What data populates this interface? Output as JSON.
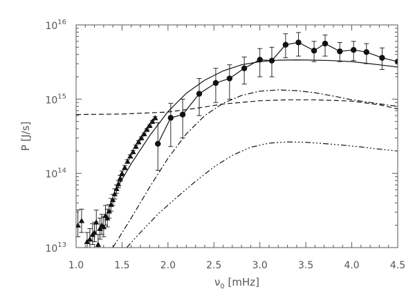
{
  "chart_data": {
    "type": "line",
    "title": "",
    "xlabel_symbol": "ν",
    "xlabel_sub": "0",
    "xlabel_unit": " [mHz]",
    "ylabel": "P [J/s]",
    "xlim": [
      1.0,
      4.5
    ],
    "ylim": [
      10000000000000.0,
      1e+16
    ],
    "yscale": "log",
    "grid": false,
    "legend": "none",
    "xticks": [
      1.0,
      1.5,
      2.0,
      2.5,
      3.0,
      3.5,
      4.0,
      4.5
    ],
    "xtick_labels": [
      "1.0",
      "1.5",
      "2.0",
      "2.5",
      "3.0",
      "3.5",
      "4.0",
      "4.5"
    ],
    "yticks": [
      10000000000000.0,
      100000000000000.0,
      1000000000000000.0,
      1e+16
    ],
    "ytick_base": [
      "10",
      "10",
      "10",
      "10"
    ],
    "ytick_exp": [
      "13",
      "14",
      "15",
      "16"
    ],
    "series": [
      {
        "marker": "triangle",
        "line": "none",
        "x": [
          1.02,
          1.06,
          1.12,
          1.15,
          1.18,
          1.2,
          1.22,
          1.24,
          1.26,
          1.28,
          1.3,
          1.32,
          1.34,
          1.36,
          1.38,
          1.4,
          1.42,
          1.44,
          1.46,
          1.48,
          1.5,
          1.53,
          1.56,
          1.59,
          1.62,
          1.65,
          1.68,
          1.71,
          1.74,
          1.77,
          1.8,
          1.83,
          1.86
        ],
        "y": [
          20000000000000.0,
          23000000000000.0,
          12000000000000.0,
          13000000000000.0,
          15000000000000.0,
          16000000000000.0,
          22000000000000.0,
          11000000000000.0,
          18000000000000.0,
          20000000000000.0,
          19000000000000.0,
          27000000000000.0,
          25000000000000.0,
          31000000000000.0,
          38000000000000.0,
          44000000000000.0,
          53000000000000.0,
          62000000000000.0,
          72000000000000.0,
          86000000000000.0,
          100000000000000.0,
          120000000000000.0,
          145000000000000.0,
          170000000000000.0,
          195000000000000.0,
          230000000000000.0,
          265000000000000.0,
          300000000000000.0,
          340000000000000.0,
          390000000000000.0,
          440000000000000.0,
          500000000000000.0,
          560000000000000.0
        ],
        "err_lo": [
          14000000000000.0,
          16000000000000.0,
          9000000000000.0,
          10000000000000.0,
          11000000000000.0,
          12000000000000.0,
          15000000000000.0,
          9000000000000.0,
          13000000000000.0,
          15000000000000.0,
          14000000000000.0,
          20000000000000.0,
          19000000000000.0,
          25000000000000.0,
          31000000000000.0,
          37000000000000.0,
          45000000000000.0,
          54000000000000.0,
          64000000000000.0,
          78000000000000.0,
          92000000000000.0,
          112000000000000.0,
          137000000000000.0,
          162000000000000.0,
          187000000000000.0,
          220000000000000.0,
          255000000000000.0,
          290000000000000.0,
          330000000000000.0,
          380000000000000.0,
          430000000000000.0,
          485000000000000.0,
          540000000000000.0
        ],
        "err_hi": [
          32000000000000.0,
          33000000000000.0,
          16000000000000.0,
          18000000000000.0,
          21000000000000.0,
          22000000000000.0,
          32000000000000.0,
          15000000000000.0,
          25000000000000.0,
          28000000000000.0,
          26000000000000.0,
          37000000000000.0,
          33000000000000.0,
          38000000000000.0,
          46000000000000.0,
          52000000000000.0,
          62000000000000.0,
          70000000000000.0,
          80000000000000.0,
          94000000000000.0,
          108000000000000.0,
          128000000000000.0,
          153000000000000.0,
          178000000000000.0,
          203000000000000.0,
          240000000000000.0,
          275000000000000.0,
          310000000000000.0,
          350000000000000.0,
          400000000000000.0,
          450000000000000.0,
          515000000000000.0,
          580000000000000.0
        ]
      },
      {
        "marker": "circle",
        "line": "solid",
        "x": [
          1.89,
          2.03,
          2.16,
          2.34,
          2.52,
          2.67,
          2.83,
          3.0,
          3.13,
          3.28,
          3.42,
          3.59,
          3.71,
          3.87,
          4.02,
          4.16,
          4.33,
          4.5
        ],
        "y": [
          250000000000000.0,
          560000000000000.0,
          620000000000000.0,
          1180000000000000.0,
          1650000000000000.0,
          1900000000000000.0,
          2600000000000000.0,
          3400000000000000.0,
          3300000000000000.0,
          5400000000000000.0,
          5800000000000000.0,
          4500000000000000.0,
          5600000000000000.0,
          4400000000000000.0,
          4600000000000000.0,
          4300000000000000.0,
          3600000000000000.0,
          3200000000000000.0
        ],
        "err_lo": [
          110000000000000.0,
          230000000000000.0,
          300000000000000.0,
          600000000000000.0,
          900000000000000.0,
          1000000000000000.0,
          1600000000000000.0,
          2000000000000000.0,
          2000000000000000.0,
          3600000000000000.0,
          3800000000000000.0,
          3200000000000000.0,
          3800000000000000.0,
          3200000000000000.0,
          3300000000000000.0,
          3000000000000000.0,
          2500000000000000.0,
          2200000000000000.0
        ],
        "err_hi": [
          480000000000000.0,
          880000000000000.0,
          1000000000000000.0,
          1900000000000000.0,
          2600000000000000.0,
          2900000000000000.0,
          3700000000000000.0,
          4800000000000000.0,
          5000000000000000.0,
          7600000000000000.0,
          7900000000000000.0,
          6000000000000000.0,
          7300000000000000.0,
          5800000000000000.0,
          6000000000000000.0,
          5600000000000000.0,
          4900000000000000.0,
          4400000000000000.0
        ]
      },
      {
        "marker": "none",
        "line": "solid",
        "x": [
          1.45,
          1.6,
          1.8,
          2.0,
          2.2,
          2.4,
          2.6,
          2.8,
          3.0,
          3.2,
          3.4,
          3.6,
          3.8,
          4.0,
          4.2,
          4.4,
          4.5
        ],
        "y": [
          65000000000000.0,
          135000000000000.0,
          320000000000000.0,
          680000000000000.0,
          1200000000000000.0,
          1800000000000000.0,
          2400000000000000.0,
          2900000000000000.0,
          3200000000000000.0,
          3350000000000000.0,
          3380000000000000.0,
          3350000000000000.0,
          3300000000000000.0,
          3200000000000000.0,
          3000000000000000.0,
          2800000000000000.0,
          2700000000000000.0
        ]
      },
      {
        "marker": "none",
        "line": "dashed",
        "x": [
          1.0,
          1.5,
          2.0,
          2.3,
          2.6,
          3.0,
          3.3,
          3.6,
          4.0,
          4.3,
          4.5
        ],
        "y": [
          620000000000000.0,
          630000000000000.0,
          670000000000000.0,
          750000000000000.0,
          860000000000000.0,
          950000000000000.0,
          980000000000000.0,
          980000000000000.0,
          940000000000000.0,
          840000000000000.0,
          740000000000000.0
        ]
      },
      {
        "marker": "none",
        "line": "dashdot",
        "x": [
          1.4,
          1.6,
          1.8,
          2.0,
          2.2,
          2.4,
          2.6,
          2.8,
          3.0,
          3.2,
          3.4,
          3.6,
          3.8,
          4.0,
          4.2,
          4.4,
          4.5
        ],
        "y": [
          10000000000000.0,
          25000000000000.0,
          65000000000000.0,
          160000000000000.0,
          340000000000000.0,
          600000000000000.0,
          880000000000000.0,
          1120000000000000.0,
          1280000000000000.0,
          1330000000000000.0,
          1300000000000000.0,
          1220000000000000.0,
          1100000000000000.0,
          980000000000000.0,
          900000000000000.0,
          830000000000000.0,
          800000000000000.0
        ]
      },
      {
        "marker": "none",
        "line": "dashdotdotdot",
        "x": [
          1.55,
          1.7,
          1.9,
          2.1,
          2.3,
          2.5,
          2.7,
          2.9,
          3.1,
          3.3,
          3.5,
          3.7,
          3.9,
          4.1,
          4.3,
          4.5
        ],
        "y": [
          10000000000000.0,
          16000000000000.0,
          29000000000000.0,
          48000000000000.0,
          78000000000000.0,
          122000000000000.0,
          175000000000000.0,
          225000000000000.0,
          255000000000000.0,
          265000000000000.0,
          262000000000000.0,
          252000000000000.0,
          240000000000000.0,
          227000000000000.0,
          212000000000000.0,
          200000000000000.0
        ]
      }
    ]
  }
}
